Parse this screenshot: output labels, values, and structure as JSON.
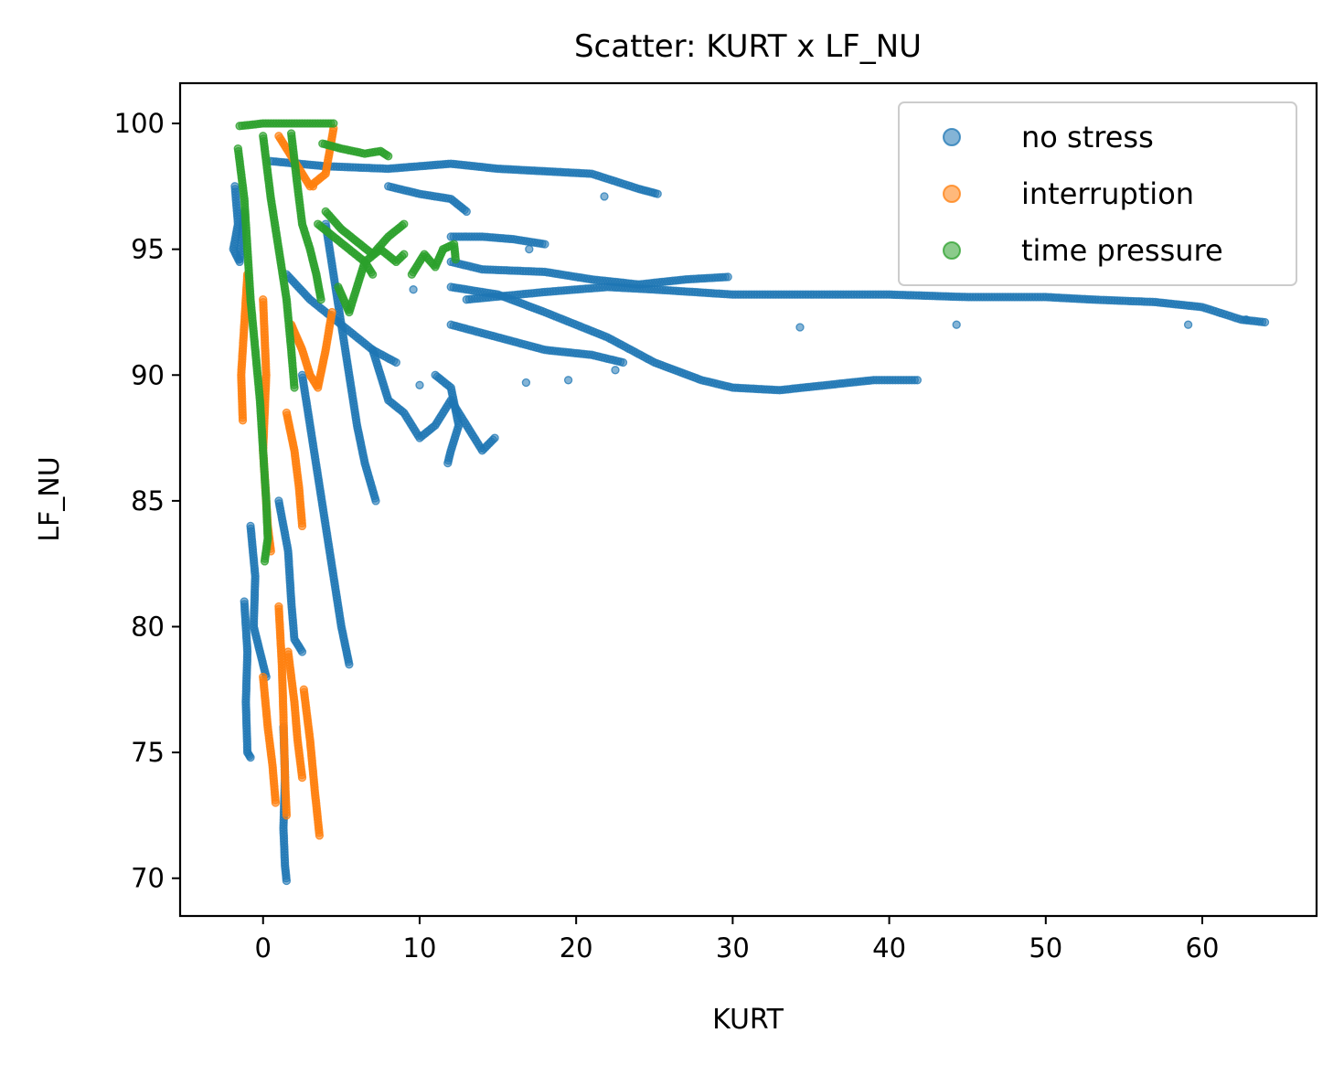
{
  "chart_data": {
    "type": "scatter",
    "title": "Scatter: KURT x LF_NU",
    "xlabel": "KURT",
    "ylabel": "LF_NU",
    "xlim": [
      -5.3,
      67.3
    ],
    "ylim": [
      68.5,
      101.6
    ],
    "xticks": [
      0,
      10,
      20,
      30,
      40,
      50,
      60
    ],
    "yticks": [
      70,
      75,
      80,
      85,
      90,
      95,
      100
    ],
    "grid": false,
    "legend_position": "top-right",
    "series": [
      {
        "name": "no stress",
        "color": "#1f77b4",
        "opacity": 0.55,
        "segments": [
          [
            [
              -1.8,
              97.5
            ],
            [
              -1.6,
              96.0
            ],
            [
              -1.9,
              95.0
            ],
            [
              -1.5,
              94.5
            ],
            [
              -1.2,
              96.5
            ]
          ],
          [
            [
              -1.2,
              81.0
            ],
            [
              -1.0,
              79.0
            ],
            [
              -1.1,
              77.0
            ],
            [
              -1.0,
              75.0
            ],
            [
              -0.8,
              74.8
            ]
          ],
          [
            [
              -0.8,
              84.0
            ],
            [
              -0.5,
              82.0
            ],
            [
              -0.6,
              80.0
            ],
            [
              -0.2,
              79.0
            ],
            [
              0.2,
              78.0
            ]
          ],
          [
            [
              1.3,
              76.0
            ],
            [
              1.4,
              74.0
            ],
            [
              1.3,
              72.0
            ],
            [
              1.4,
              70.5
            ],
            [
              1.5,
              69.9
            ]
          ],
          [
            [
              1.0,
              85.0
            ],
            [
              1.6,
              83.0
            ],
            [
              1.8,
              81.0
            ],
            [
              2.0,
              79.5
            ],
            [
              2.5,
              79.0
            ]
          ],
          [
            [
              2.5,
              90.0
            ],
            [
              3.0,
              88.0
            ],
            [
              3.5,
              86.0
            ],
            [
              4.0,
              84.0
            ],
            [
              4.5,
              82.0
            ],
            [
              5.0,
              80.0
            ],
            [
              5.5,
              78.5
            ]
          ],
          [
            [
              1.5,
              94.0
            ],
            [
              3.0,
              93.0
            ],
            [
              5.0,
              92.0
            ],
            [
              7.0,
              91.0
            ],
            [
              8.5,
              90.5
            ]
          ],
          [
            [
              4.0,
              96.0
            ],
            [
              4.5,
              94.0
            ],
            [
              5.0,
              92.0
            ],
            [
              5.5,
              90.0
            ],
            [
              6.0,
              88.0
            ],
            [
              6.5,
              86.5
            ],
            [
              7.2,
              85.0
            ]
          ],
          [
            [
              7.0,
              91.0
            ],
            [
              8.0,
              89.0
            ],
            [
              9.0,
              88.5
            ],
            [
              10.0,
              87.5
            ],
            [
              11.0,
              88.0
            ],
            [
              12.0,
              89.0
            ],
            [
              13.0,
              88.0
            ],
            [
              14.0,
              87.0
            ],
            [
              14.8,
              87.5
            ]
          ],
          [
            [
              11.0,
              90.0
            ],
            [
              12.0,
              89.5
            ],
            [
              12.5,
              88.0
            ],
            [
              12.0,
              87.0
            ],
            [
              11.8,
              86.5
            ]
          ],
          [
            [
              0.5,
              98.5
            ],
            [
              4.0,
              98.3
            ],
            [
              8.0,
              98.2
            ],
            [
              10.0,
              98.3
            ],
            [
              12.0,
              98.4
            ],
            [
              15.0,
              98.2
            ],
            [
              18.0,
              98.1
            ],
            [
              21.0,
              98.0
            ],
            [
              24.0,
              97.4
            ],
            [
              25.2,
              97.2
            ]
          ],
          [
            [
              8.0,
              97.5
            ],
            [
              10.0,
              97.2
            ],
            [
              12.0,
              97.0
            ],
            [
              13.0,
              96.5
            ]
          ],
          [
            [
              12.0,
              95.5
            ],
            [
              14.0,
              95.5
            ],
            [
              16.0,
              95.4
            ],
            [
              18.0,
              95.2
            ]
          ],
          [
            [
              12.0,
              94.5
            ],
            [
              14.0,
              94.2
            ],
            [
              18.0,
              94.1
            ],
            [
              21.0,
              93.8
            ],
            [
              24.0,
              93.6
            ],
            [
              27.0,
              93.8
            ],
            [
              29.7,
              93.9
            ]
          ],
          [
            [
              12.0,
              93.5
            ],
            [
              15.0,
              93.2
            ],
            [
              18.0,
              92.5
            ],
            [
              22.0,
              91.5
            ],
            [
              25.0,
              90.5
            ],
            [
              28.0,
              89.8
            ],
            [
              30.0,
              89.5
            ],
            [
              33.0,
              89.4
            ],
            [
              36.0,
              89.6
            ],
            [
              39.0,
              89.8
            ],
            [
              41.8,
              89.8
            ]
          ],
          [
            [
              13.0,
              93.0
            ],
            [
              18.0,
              93.3
            ],
            [
              22.0,
              93.5
            ],
            [
              25.0,
              93.4
            ],
            [
              30.0,
              93.2
            ],
            [
              35.0,
              93.2
            ],
            [
              40.0,
              93.2
            ],
            [
              45.0,
              93.1
            ],
            [
              50.0,
              93.1
            ],
            [
              53.0,
              93.0
            ],
            [
              57.0,
              92.9
            ],
            [
              60.0,
              92.7
            ],
            [
              62.5,
              92.2
            ],
            [
              64.0,
              92.1
            ]
          ],
          [
            [
              12.0,
              92.0
            ],
            [
              15.0,
              91.5
            ],
            [
              18.0,
              91.0
            ],
            [
              21.0,
              90.8
            ],
            [
              23.0,
              90.5
            ]
          ]
        ],
        "points": [
          [
            21.8,
            97.1
          ],
          [
            17.0,
            95.0
          ],
          [
            34.3,
            91.9
          ],
          [
            44.3,
            92.0
          ],
          [
            59.1,
            92.0
          ],
          [
            62.8,
            92.2
          ],
          [
            16.8,
            89.7
          ],
          [
            19.5,
            89.8
          ],
          [
            22.5,
            90.2
          ],
          [
            10.0,
            89.6
          ],
          [
            9.6,
            93.4
          ]
        ]
      },
      {
        "name": "interruption",
        "color": "#ff7f0e",
        "opacity": 0.6,
        "segments": [
          [
            [
              -1.0,
              94.0
            ],
            [
              -1.2,
              92.0
            ],
            [
              -1.4,
              90.0
            ],
            [
              -1.3,
              88.2
            ]
          ],
          [
            [
              0.0,
              93.0
            ],
            [
              0.2,
              90.0
            ],
            [
              0.0,
              87.0
            ],
            [
              0.3,
              84.0
            ],
            [
              0.5,
              83.0
            ]
          ],
          [
            [
              1.5,
              88.5
            ],
            [
              2.0,
              87.0
            ],
            [
              2.3,
              85.5
            ],
            [
              2.5,
              84.0
            ]
          ],
          [
            [
              1.8,
              92.0
            ],
            [
              2.5,
              91.0
            ],
            [
              3.0,
              90.0
            ],
            [
              3.5,
              89.5
            ],
            [
              4.0,
              91.0
            ],
            [
              4.4,
              92.5
            ]
          ],
          [
            [
              1.0,
              99.5
            ],
            [
              2.0,
              98.5
            ],
            [
              3.0,
              97.5
            ],
            [
              4.0,
              98.0
            ],
            [
              4.5,
              99.8
            ]
          ],
          [
            [
              1.0,
              80.8
            ],
            [
              1.2,
              78.5
            ],
            [
              1.3,
              76.5
            ],
            [
              1.4,
              74.0
            ],
            [
              1.5,
              72.5
            ]
          ],
          [
            [
              0.0,
              78.0
            ],
            [
              0.3,
              76.0
            ],
            [
              0.6,
              74.5
            ],
            [
              0.8,
              73.0
            ]
          ],
          [
            [
              1.6,
              79.0
            ],
            [
              2.0,
              77.0
            ],
            [
              2.2,
              75.5
            ],
            [
              2.5,
              74.0
            ]
          ],
          [
            [
              2.6,
              77.5
            ],
            [
              3.0,
              75.5
            ],
            [
              3.3,
              73.5
            ],
            [
              3.6,
              71.7
            ]
          ]
        ],
        "points": [
          [
            3.2,
            97.5
          ]
        ]
      },
      {
        "name": "time pressure",
        "color": "#2ca02c",
        "opacity": 0.6,
        "segments": [
          [
            [
              -1.5,
              99.9
            ],
            [
              0.0,
              100.0
            ],
            [
              2.0,
              100.0
            ],
            [
              4.5,
              100.0
            ]
          ],
          [
            [
              -1.6,
              99.0
            ],
            [
              -1.2,
              97.0
            ],
            [
              -1.0,
              95.0
            ],
            [
              -0.8,
              93.0
            ],
            [
              -0.5,
              91.0
            ],
            [
              -0.2,
              89.0
            ],
            [
              0.0,
              87.0
            ],
            [
              0.2,
              85.0
            ],
            [
              0.3,
              83.5
            ],
            [
              0.1,
              82.6
            ]
          ],
          [
            [
              0.0,
              99.5
            ],
            [
              0.5,
              97.0
            ],
            [
              1.0,
              95.0
            ],
            [
              1.5,
              93.0
            ],
            [
              1.8,
              91.0
            ],
            [
              2.0,
              89.5
            ]
          ],
          [
            [
              1.8,
              99.6
            ],
            [
              2.2,
              97.5
            ],
            [
              2.5,
              96.0
            ],
            [
              3.0,
              95.0
            ],
            [
              3.4,
              94.0
            ],
            [
              3.7,
              93.0
            ]
          ],
          [
            [
              3.8,
              99.2
            ],
            [
              5.0,
              99.0
            ],
            [
              6.5,
              98.8
            ],
            [
              7.5,
              98.9
            ],
            [
              8.0,
              98.7
            ]
          ],
          [
            [
              3.5,
              96.0
            ],
            [
              4.5,
              95.5
            ],
            [
              5.5,
              95.0
            ],
            [
              6.5,
              94.5
            ],
            [
              7.5,
              95.0
            ],
            [
              8.5,
              94.5
            ],
            [
              9.0,
              94.8
            ]
          ],
          [
            [
              4.0,
              96.5
            ],
            [
              5.0,
              95.8
            ],
            [
              6.0,
              95.3
            ],
            [
              7.0,
              94.8
            ],
            [
              8.0,
              95.5
            ],
            [
              9.0,
              96.0
            ]
          ],
          [
            [
              9.5,
              94.0
            ],
            [
              10.3,
              94.8
            ],
            [
              11.0,
              94.3
            ],
            [
              11.5,
              95.0
            ],
            [
              12.2,
              95.2
            ],
            [
              12.3,
              94.6
            ]
          ],
          [
            [
              4.8,
              93.5
            ],
            [
              5.5,
              92.5
            ],
            [
              6.0,
              93.5
            ],
            [
              6.5,
              94.5
            ],
            [
              7.0,
              94.0
            ]
          ]
        ],
        "points": []
      }
    ]
  }
}
